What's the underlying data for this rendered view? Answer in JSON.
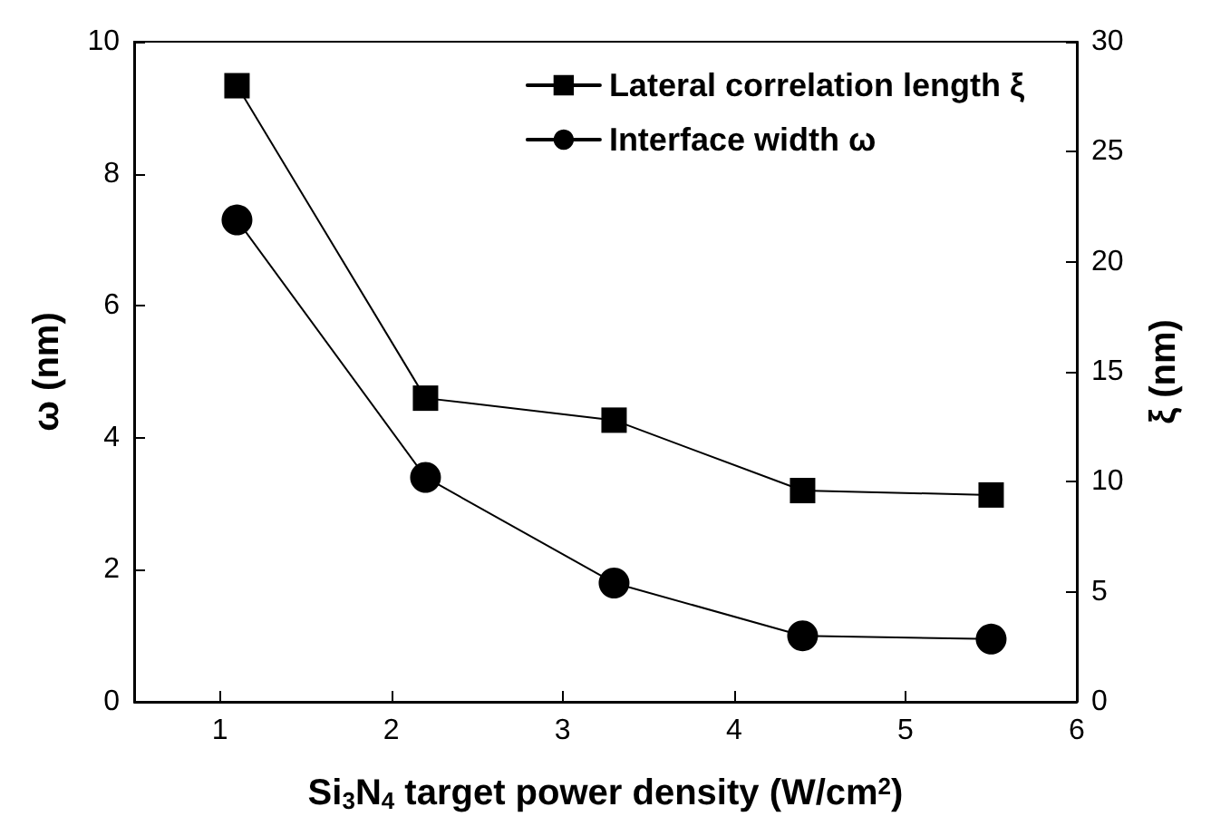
{
  "chart_data": {
    "type": "line",
    "xlabel": "Si$_{3}$N$_{4}$ target power density (W/cm$^{2}$)",
    "ylabel": "ω (nm)",
    "y2label": "ξ (nm)",
    "x": [
      1.1,
      2.2,
      3.3,
      4.4,
      5.5
    ],
    "xlim": [
      0.5,
      6
    ],
    "xticks": [
      1,
      2,
      3,
      4,
      5,
      6
    ],
    "ylim": [
      0,
      10
    ],
    "yticks": [
      0,
      2,
      4,
      6,
      8,
      10
    ],
    "y2lim": [
      0,
      30
    ],
    "y2ticks": [
      0,
      5,
      10,
      15,
      20,
      25,
      30
    ],
    "series": [
      {
        "name": "Lateral correlation length ξ",
        "color": "#000000",
        "axis": "y2",
        "marker": "square",
        "values": [
          28.0,
          13.8,
          12.8,
          9.6,
          9.4
        ]
      },
      {
        "name": "Interface width ω",
        "color": "#000000",
        "marker": "circle",
        "values": [
          7.3,
          3.4,
          1.8,
          1.0,
          0.95
        ]
      }
    ],
    "legend": "top right",
    "grid": false,
    "line_style": "solid"
  }
}
